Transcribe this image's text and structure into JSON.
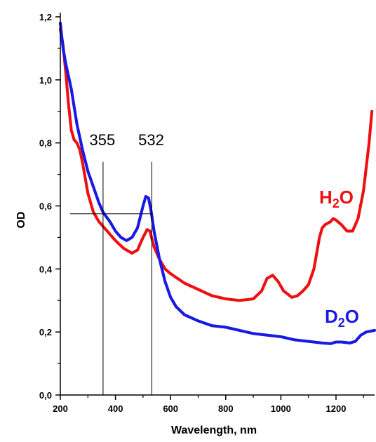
{
  "chart_data": {
    "type": "line",
    "title": "",
    "xlabel": "Wavelength, nm",
    "ylabel": "OD",
    "xlim": [
      200,
      1340
    ],
    "ylim": [
      0.0,
      1.2
    ],
    "x_ticks": [
      200,
      400,
      600,
      800,
      1000,
      1200
    ],
    "x_tick_labels": [
      "200",
      "400",
      "600",
      "800",
      "1000",
      "1200"
    ],
    "y_ticks": [
      0.0,
      0.2,
      0.4,
      0.6,
      0.8,
      1.0,
      1.2
    ],
    "y_tick_labels": [
      "0,0",
      "0,2",
      "0,4",
      "0,6",
      "0,8",
      "1,0",
      "1,2"
    ],
    "grid": false,
    "annotations": [
      {
        "text": "355",
        "x": 355
      },
      {
        "text": "532",
        "x": 532
      }
    ],
    "reference_lines": {
      "vertical": [
        {
          "x": 355,
          "y_from": 0.0,
          "y_to": 0.74
        },
        {
          "x": 532,
          "y_from": 0.0,
          "y_to": 0.74
        }
      ],
      "horizontal": [
        {
          "y": 0.575,
          "x_from": 235,
          "x_to": 532
        }
      ]
    },
    "series": [
      {
        "name_parts": [
          "H",
          "2",
          "O"
        ],
        "color": "#ee1111",
        "x": [
          200,
          210,
          220,
          230,
          240,
          250,
          260,
          270,
          280,
          290,
          300,
          320,
          340,
          355,
          370,
          400,
          430,
          460,
          480,
          500,
          515,
          525,
          540,
          560,
          580,
          600,
          650,
          700,
          750,
          800,
          850,
          900,
          930,
          950,
          970,
          990,
          1010,
          1040,
          1060,
          1080,
          1100,
          1120,
          1140,
          1150,
          1160,
          1180,
          1190,
          1200,
          1220,
          1240,
          1260,
          1280,
          1300,
          1320,
          1330
        ],
        "y": [
          1.16,
          1.11,
          1.02,
          0.92,
          0.84,
          0.81,
          0.8,
          0.78,
          0.74,
          0.69,
          0.64,
          0.58,
          0.55,
          0.535,
          0.52,
          0.49,
          0.465,
          0.45,
          0.46,
          0.5,
          0.525,
          0.52,
          0.47,
          0.43,
          0.4,
          0.385,
          0.355,
          0.335,
          0.315,
          0.305,
          0.3,
          0.305,
          0.33,
          0.37,
          0.38,
          0.36,
          0.33,
          0.31,
          0.315,
          0.33,
          0.35,
          0.4,
          0.5,
          0.53,
          0.54,
          0.55,
          0.56,
          0.555,
          0.54,
          0.52,
          0.52,
          0.56,
          0.65,
          0.8,
          0.9
        ]
      },
      {
        "name_parts": [
          "D",
          "2",
          "O"
        ],
        "color": "#1a1ae6",
        "x": [
          200,
          210,
          220,
          230,
          240,
          260,
          280,
          300,
          320,
          340,
          355,
          380,
          400,
          420,
          440,
          460,
          480,
          500,
          510,
          520,
          530,
          540,
          560,
          580,
          600,
          620,
          650,
          700,
          750,
          800,
          850,
          900,
          950,
          1000,
          1050,
          1100,
          1150,
          1180,
          1200,
          1220,
          1250,
          1270,
          1290,
          1310,
          1340
        ],
        "y": [
          1.18,
          1.1,
          1.05,
          1.01,
          0.97,
          0.86,
          0.78,
          0.71,
          0.66,
          0.61,
          0.58,
          0.55,
          0.52,
          0.5,
          0.49,
          0.5,
          0.53,
          0.6,
          0.63,
          0.625,
          0.58,
          0.52,
          0.43,
          0.36,
          0.31,
          0.28,
          0.255,
          0.235,
          0.22,
          0.215,
          0.205,
          0.195,
          0.19,
          0.185,
          0.175,
          0.17,
          0.165,
          0.163,
          0.168,
          0.168,
          0.165,
          0.17,
          0.19,
          0.2,
          0.205
        ]
      }
    ]
  }
}
